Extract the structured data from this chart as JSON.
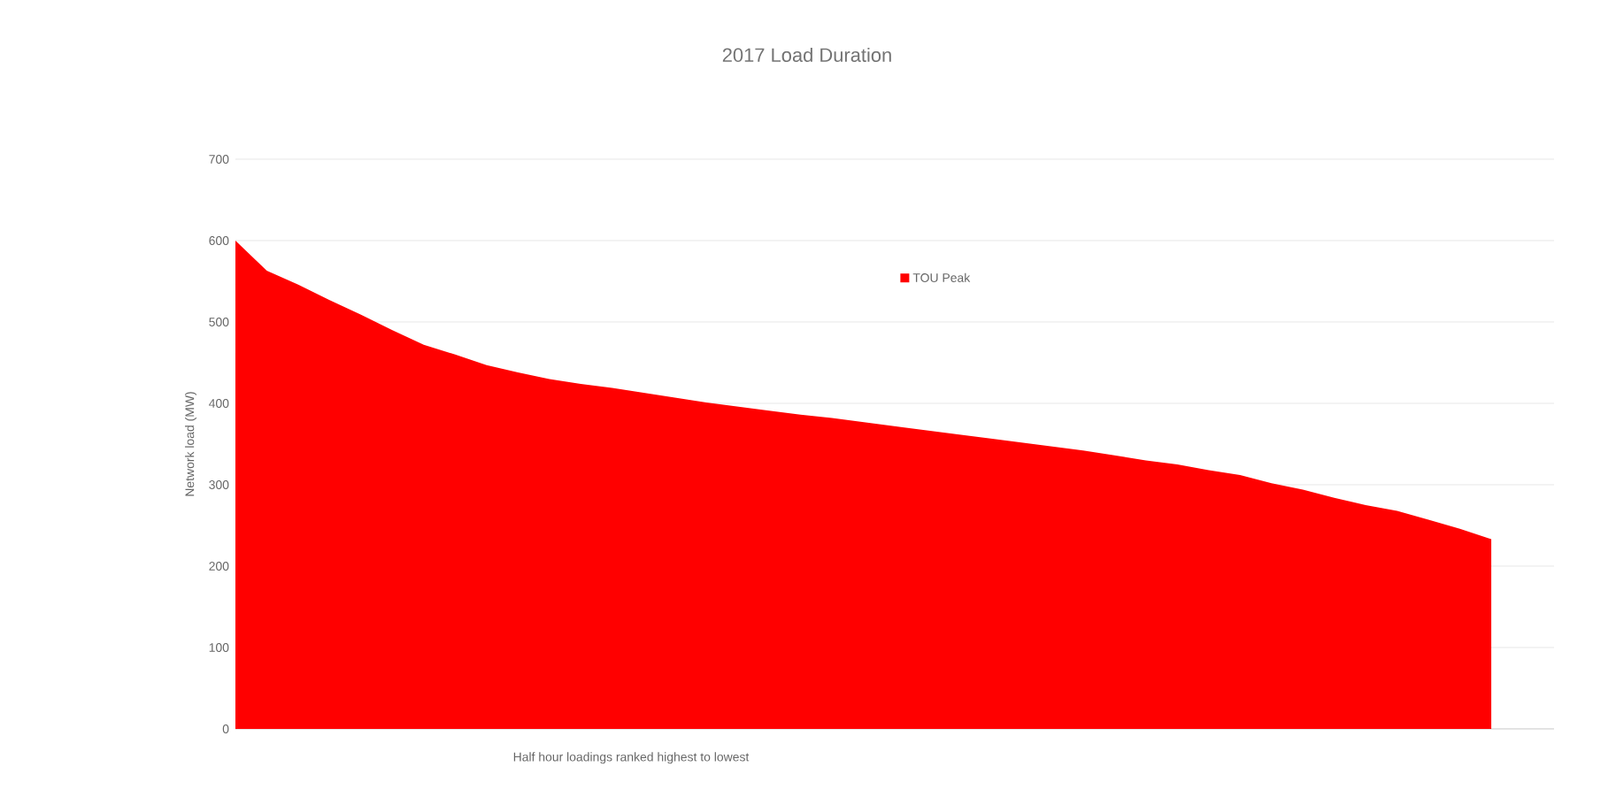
{
  "chart_data": {
    "type": "area",
    "title": "2017 Load Duration",
    "xlabel": "Half hour loadings ranked highest to lowest",
    "ylabel": "Network load (MW)",
    "categories": [
      null,
      null,
      null,
      null,
      null,
      null,
      null,
      null,
      null,
      null,
      null,
      null,
      null,
      null,
      null,
      null,
      null,
      null,
      null,
      null,
      null,
      null,
      null,
      null,
      null,
      null,
      null,
      null,
      null,
      null,
      null,
      null,
      null,
      null,
      null,
      null,
      null,
      null,
      null,
      null,
      null,
      null,
      null
    ],
    "series": [
      {
        "name": "TOU Peak",
        "color": "#ff0000",
        "values": [
          600,
          563,
          546,
          527,
          509,
          490,
          472,
          460,
          447,
          438,
          430,
          424,
          419,
          413,
          407,
          401,
          396,
          391,
          386,
          382,
          377,
          372,
          367,
          362,
          357,
          352,
          347,
          342,
          336,
          330,
          325,
          318,
          312,
          302,
          294,
          284,
          275,
          268,
          257,
          246,
          233,
          null,
          null
        ]
      }
    ],
    "ylim": [
      0,
      700
    ],
    "yticks": [
      0,
      100,
      200,
      300,
      400,
      500,
      600,
      700
    ],
    "grid": "y",
    "legend": "top",
    "tick_labels": "y"
  }
}
